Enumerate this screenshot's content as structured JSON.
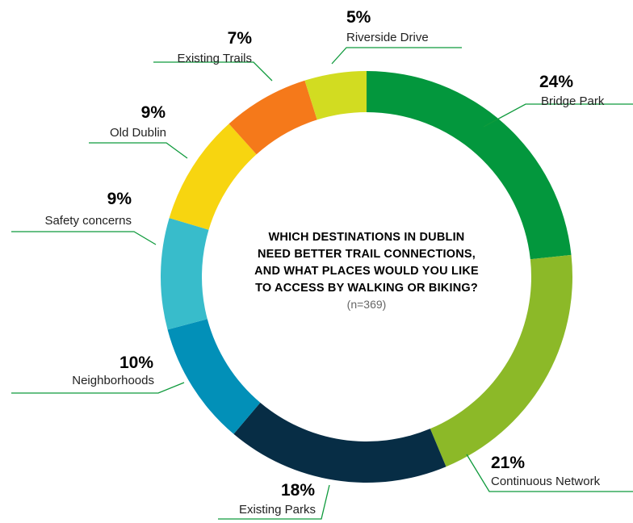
{
  "chart_data": {
    "type": "pie",
    "variant": "donut",
    "title_lines": [
      "WHICH DESTINATIONS IN DUBLIN",
      "NEED BETTER TRAIL CONNECTIONS,",
      "AND WHAT PLACES WOULD YOU LIKE",
      "TO ACCESS BY WALKING OR BIKING?"
    ],
    "sample": "(n=369)",
    "slices": [
      {
        "label": "Bridge Park",
        "value": 24,
        "pct_label": "24%",
        "color": "#03973d"
      },
      {
        "label": "Continuous Network",
        "value": 21,
        "pct_label": "21%",
        "color": "#8cb928"
      },
      {
        "label": "Existing Parks",
        "value": 18,
        "pct_label": "18%",
        "color": "#072d45"
      },
      {
        "label": "Neighborhoods",
        "value": 10,
        "pct_label": "10%",
        "color": "#0290b8"
      },
      {
        "label": "Safety concerns",
        "value": 9,
        "pct_label": "9%",
        "color": "#38bccb"
      },
      {
        "label": "Old Dublin",
        "value": 9,
        "pct_label": "9%",
        "color": "#f7d510"
      },
      {
        "label": "Existing Trails",
        "value": 7,
        "pct_label": "7%",
        "color": "#f5791a"
      },
      {
        "label": "Riverside Drive",
        "value": 5,
        "pct_label": "5%",
        "color": "#d2dc21"
      }
    ],
    "leader_color": "#0f9a3c"
  }
}
